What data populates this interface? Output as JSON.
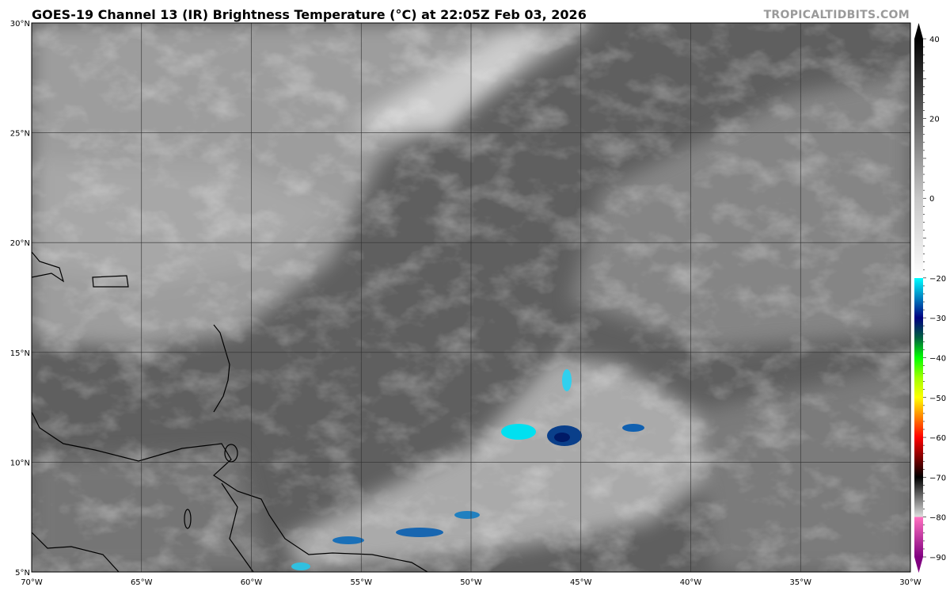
{
  "header": {
    "title": "GOES-19 Channel 13 (IR) Brightness Temperature (°C) at 22:05Z Feb 03, 2026",
    "watermark": "TROPICALTIDBITS.COM"
  },
  "map": {
    "lon_range": [
      -70,
      -30
    ],
    "lat_range": [
      5,
      30
    ],
    "lon_labels": [
      "70°W",
      "65°W",
      "60°W",
      "55°W",
      "50°W",
      "45°W",
      "40°W",
      "35°W",
      "30°W"
    ],
    "lat_labels": [
      "5°N",
      "10°N",
      "15°N",
      "20°N",
      "25°N",
      "30°N"
    ],
    "background_color": "#5f5f5f",
    "coastline_color": "#000000"
  },
  "colorbar": {
    "range": [
      -90,
      40
    ],
    "tick_labels": [
      "40",
      "20",
      "0",
      "−20",
      "−30",
      "−40",
      "−50",
      "−60",
      "−70",
      "−80",
      "−90"
    ],
    "tick_values": [
      40,
      20,
      0,
      -20,
      -30,
      -40,
      -50,
      -60,
      -70,
      -80,
      -90
    ],
    "stops": [
      {
        "t": 40,
        "c": "#000000"
      },
      {
        "t": 0,
        "c": "#c8c8c8"
      },
      {
        "t": -20,
        "c": "#ffffff"
      },
      {
        "t": -20,
        "c": "#00ffff"
      },
      {
        "t": -25,
        "c": "#0080c0"
      },
      {
        "t": -30,
        "c": "#000080"
      },
      {
        "t": -35,
        "c": "#006040"
      },
      {
        "t": -40,
        "c": "#00ff00"
      },
      {
        "t": -45,
        "c": "#a0ff00"
      },
      {
        "t": -50,
        "c": "#ffff00"
      },
      {
        "t": -55,
        "c": "#ff8000"
      },
      {
        "t": -60,
        "c": "#ff0000"
      },
      {
        "t": -65,
        "c": "#800000"
      },
      {
        "t": -70,
        "c": "#000000"
      },
      {
        "t": -80,
        "c": "#e0e0e0"
      },
      {
        "t": -80,
        "c": "#ff70c0"
      },
      {
        "t": -90,
        "c": "#800080"
      }
    ]
  }
}
